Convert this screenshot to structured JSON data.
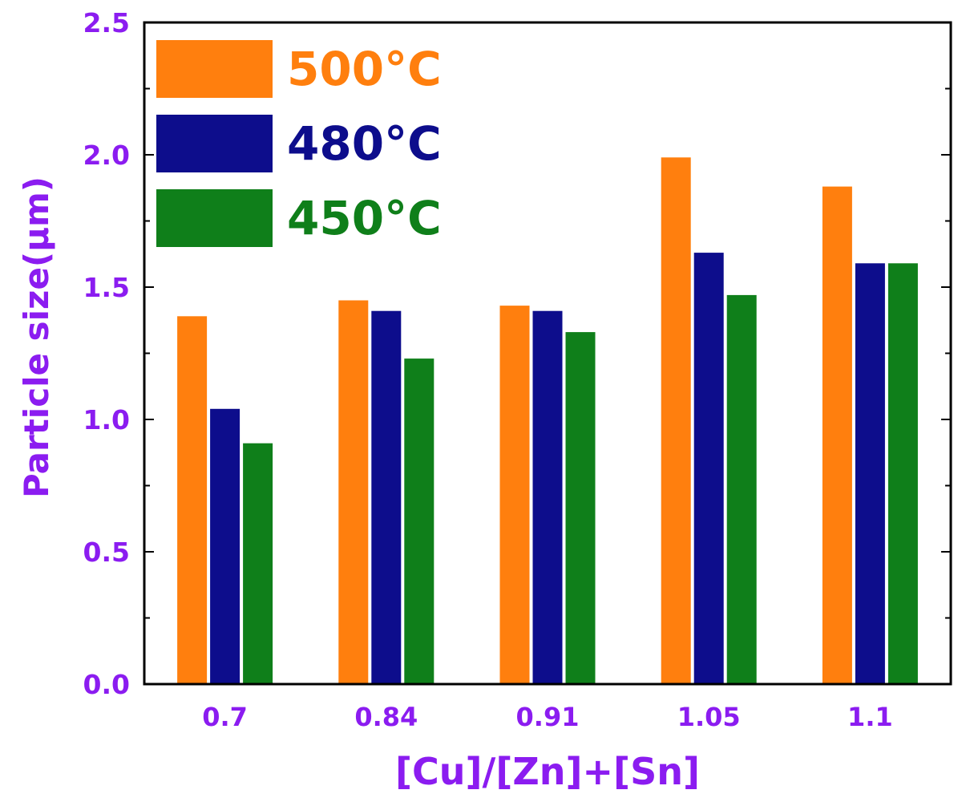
{
  "chart_data": {
    "type": "bar",
    "title": "",
    "xlabel": "[Cu]/[Zn]+[Sn]",
    "ylabel": "Particle size(μm)",
    "categories": [
      "0.7",
      "0.84",
      "0.91",
      "1.05",
      "1.1"
    ],
    "series": [
      {
        "name": "500°C",
        "color": "#ff7f0e",
        "values": [
          1.39,
          1.45,
          1.43,
          1.99,
          1.88
        ]
      },
      {
        "name": "480°C",
        "color": "#0d0d8c",
        "values": [
          1.04,
          1.41,
          1.41,
          1.63,
          1.59
        ]
      },
      {
        "name": "450°C",
        "color": "#0f7f1a",
        "values": [
          0.91,
          1.23,
          1.33,
          1.47,
          1.59
        ]
      }
    ],
    "ylim": [
      0,
      2.5
    ],
    "yticks": [
      "0.0",
      "0.5",
      "1.0",
      "1.5",
      "2.0",
      "2.5"
    ],
    "grid": false,
    "legend_position": "top-left",
    "label_color": "#8b1cf0"
  }
}
